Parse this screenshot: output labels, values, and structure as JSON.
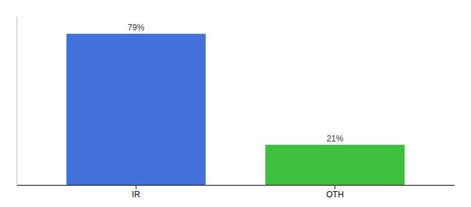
{
  "chart_data": {
    "type": "bar",
    "categories": [
      "IR",
      "OTH"
    ],
    "values": [
      79,
      21
    ],
    "colors": [
      "#4472db",
      "#3dbf3d"
    ],
    "value_labels": [
      "79%",
      "21%"
    ],
    "data_labels": true,
    "ylim": [
      0,
      88
    ],
    "tick_labels": "x"
  }
}
